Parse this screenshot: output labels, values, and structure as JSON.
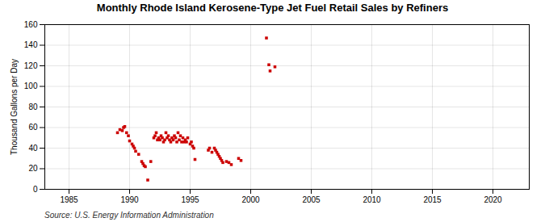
{
  "chart_data": {
    "type": "scatter",
    "title": "Monthly Rhode Island Kerosene-Type Jet Fuel Retail Sales by Refiners",
    "ylabel": "Thousand Gallons per Day",
    "source": "Source: U.S. Energy Information Administration",
    "color": "#cc0000",
    "marker": "square",
    "grid": true,
    "xlim": [
      1983,
      2023
    ],
    "ylim": [
      0,
      160
    ],
    "xticks": [
      1985,
      1990,
      1995,
      2000,
      2005,
      2010,
      2015,
      2020
    ],
    "yticks": [
      0,
      20,
      40,
      60,
      80,
      100,
      120,
      140,
      160
    ],
    "x": [
      1989.0,
      1989.2,
      1989.4,
      1989.5,
      1989.6,
      1989.75,
      1989.9,
      1990.0,
      1990.2,
      1990.3,
      1990.4,
      1990.5,
      1990.75,
      1991.0,
      1991.1,
      1991.2,
      1991.3,
      1991.5,
      1991.75,
      1992.0,
      1992.1,
      1992.2,
      1992.3,
      1992.4,
      1992.5,
      1992.6,
      1992.7,
      1992.8,
      1992.9,
      1993.0,
      1993.1,
      1993.2,
      1993.3,
      1993.4,
      1993.5,
      1993.6,
      1993.7,
      1993.8,
      1993.9,
      1994.0,
      1994.1,
      1994.2,
      1994.3,
      1994.4,
      1994.5,
      1994.6,
      1994.7,
      1994.8,
      1995.0,
      1995.1,
      1995.2,
      1995.3,
      1995.4,
      1996.5,
      1996.6,
      1996.8,
      1997.0,
      1997.1,
      1997.2,
      1997.3,
      1997.4,
      1997.5,
      1997.6,
      1997.7,
      1998.0,
      1998.2,
      1998.4,
      1999.0,
      1999.2,
      2001.3,
      2001.5,
      2001.6,
      2002.0
    ],
    "values": [
      55,
      58,
      57,
      60,
      61,
      55,
      52,
      47,
      44,
      42,
      40,
      37,
      34,
      27,
      25,
      23,
      22,
      9,
      27,
      50,
      52,
      55,
      48,
      50,
      48,
      52,
      50,
      46,
      48,
      55,
      50,
      52,
      48,
      46,
      50,
      48,
      52,
      50,
      46,
      55,
      48,
      52,
      46,
      50,
      46,
      48,
      46,
      50,
      44,
      46,
      42,
      40,
      29,
      38,
      40,
      36,
      40,
      38,
      36,
      34,
      32,
      30,
      28,
      26,
      27,
      26,
      24,
      30,
      28,
      147,
      121,
      115,
      119
    ]
  }
}
